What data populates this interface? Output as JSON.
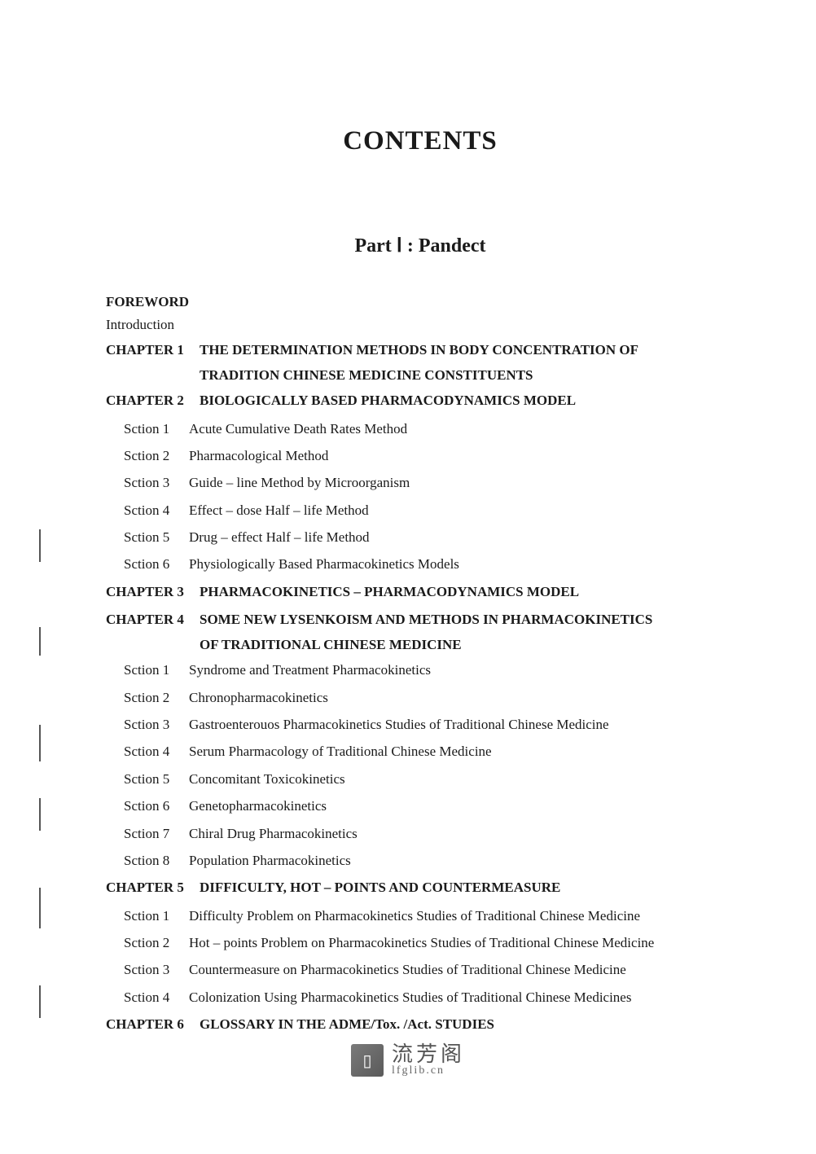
{
  "page": {
    "main_title": "CONTENTS",
    "part_title": "Part Ⅰ : Pandect",
    "foreword": "FOREWORD",
    "introduction": "Introduction",
    "watermark": {
      "chinese": "流芳阁",
      "url": "lfglib.cn",
      "icon_glyph": "▯"
    }
  },
  "styling": {
    "background_color": "#ffffff",
    "text_color": "#1a1a1a",
    "font_family": "Times New Roman",
    "title_fontsize": 33,
    "part_fontsize": 24,
    "body_fontsize": 17,
    "chapter_label_width": 115,
    "section_label_width": 80,
    "section_indent": 22,
    "watermark_color": "#555555"
  },
  "chapters": [
    {
      "label": "CHAPTER 1",
      "title_line1": "THE DETERMINATION METHODS IN BODY CONCENTRATION OF",
      "title_line2": "TRADITION CHINESE MEDICINE CONSTITUENTS",
      "sections": []
    },
    {
      "label": "CHAPTER 2",
      "title_line1": "BIOLOGICALLY BASED PHARMACODYNAMICS MODEL",
      "title_line2": "",
      "sections": [
        {
          "label": "Sction 1",
          "text": "Acute Cumulative Death Rates Method"
        },
        {
          "label": "Sction 2",
          "text": "Pharmacological Method"
        },
        {
          "label": "Sction 3",
          "text": "Guide – line Method by Microorganism"
        },
        {
          "label": "Sction 4",
          "text": "Effect – dose Half – life Method"
        },
        {
          "label": "Sction 5",
          "text": "Drug – effect Half – life Method"
        },
        {
          "label": "Sction 6",
          "text": "Physiologically Based Pharmacokinetics Models"
        }
      ]
    },
    {
      "label": "CHAPTER 3",
      "title_line1": "PHARMACOKINETICS – PHARMACODYNAMICS MODEL",
      "title_line2": "",
      "sections": []
    },
    {
      "label": "CHAPTER 4",
      "title_line1": "SOME NEW LYSENKOISM AND METHODS IN PHARMACOKINETICS",
      "title_line2": "OF TRADITIONAL CHINESE MEDICINE",
      "sections": [
        {
          "label": "Sction 1",
          "text": "Syndrome and Treatment Pharmacokinetics"
        },
        {
          "label": "Sction 2",
          "text": "Chronopharmacokinetics"
        },
        {
          "label": "Sction 3",
          "text": "Gastroenterouos Pharmacokinetics Studies of Traditional Chinese Medicine"
        },
        {
          "label": "Sction 4",
          "text": "Serum Pharmacology of Traditional Chinese Medicine"
        },
        {
          "label": "Sction 5",
          "text": "Concomitant Toxicokinetics"
        },
        {
          "label": "Sction 6",
          "text": "Genetopharmacokinetics"
        },
        {
          "label": "Sction 7",
          "text": "Chiral Drug Pharmacokinetics"
        },
        {
          "label": "Sction 8",
          "text": "Population Pharmacokinetics"
        }
      ]
    },
    {
      "label": "CHAPTER 5",
      "title_line1": "DIFFICULTY, HOT – POINTS AND COUNTERMEASURE",
      "title_line2": "",
      "sections": [
        {
          "label": "Sction 1",
          "text": "Difficulty Problem on Pharmacokinetics Studies of Traditional Chinese Medicine"
        },
        {
          "label": "Sction 2",
          "text": "Hot – points Problem on Pharmacokinetics Studies of Traditional Chinese Medicine"
        },
        {
          "label": "Sction 3",
          "text": "Countermeasure on Pharmacokinetics Studies of Traditional Chinese Medicine"
        },
        {
          "label": "Sction 4",
          "text": "Colonization Using Pharmacokinetics Studies of Traditional Chinese Medicines"
        }
      ]
    },
    {
      "label": "CHAPTER 6",
      "title_line1": "GLOSSARY IN THE ADME/Tox.  /Act. STUDIES",
      "title_line2": "",
      "sections": []
    }
  ]
}
